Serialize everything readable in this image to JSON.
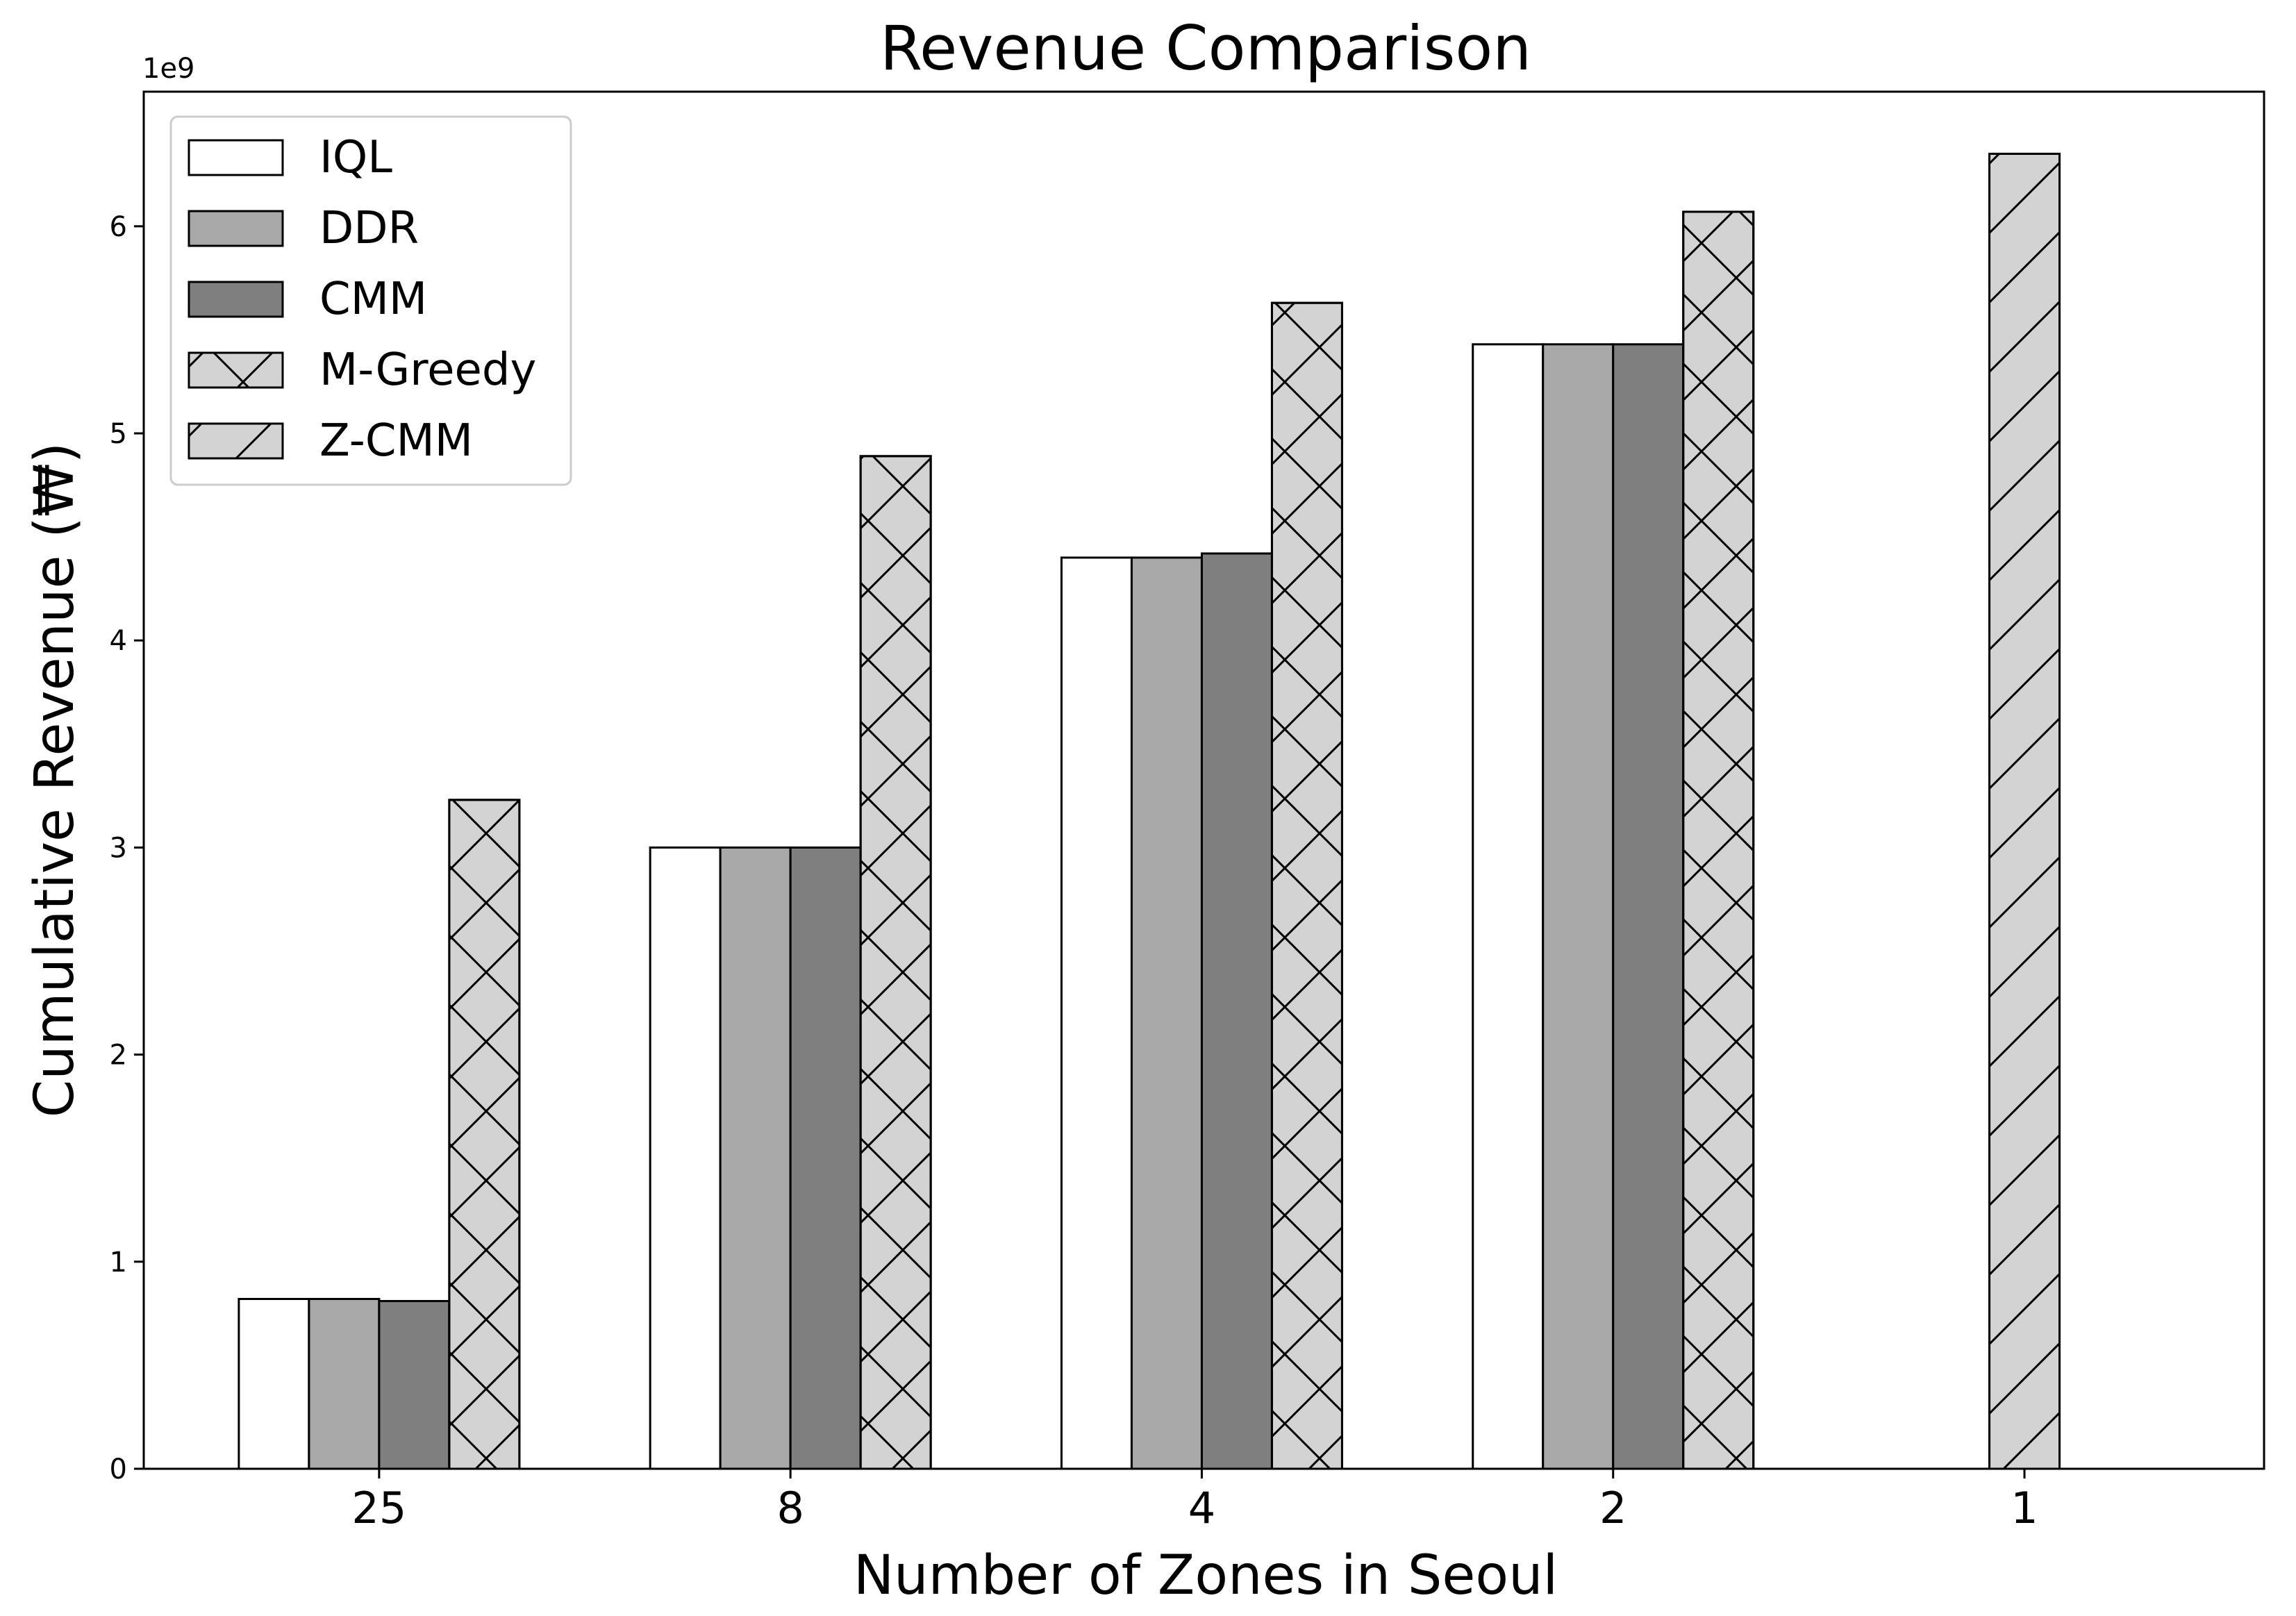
{
  "chart_data": {
    "type": "bar",
    "title": "Revenue Comparison",
    "xlabel": "Number of Zones in Seoul",
    "ylabel": "Cumulative Revenue (₩)",
    "y_offset_label": "1e9",
    "categories": [
      "25",
      "8",
      "4",
      "2",
      "1"
    ],
    "ylim": [
      0,
      6.65
    ],
    "yticks": [
      0,
      1,
      2,
      3,
      4,
      5,
      6
    ],
    "ytick_labels": [
      "0",
      "1",
      "2",
      "3",
      "4",
      "5",
      "6"
    ],
    "legend_position": "top-left",
    "grid": false,
    "series": [
      {
        "name": "IQL",
        "color": "#ffffff",
        "hatch": "none",
        "values": [
          0.82,
          3.0,
          4.4,
          5.43,
          null
        ]
      },
      {
        "name": "DDR",
        "color": "#a8a8a8",
        "hatch": "none",
        "values": [
          0.82,
          3.0,
          4.4,
          5.43,
          null
        ]
      },
      {
        "name": "CMM",
        "color": "#7f7f7f",
        "hatch": "none",
        "values": [
          0.81,
          3.0,
          4.42,
          5.43,
          null
        ]
      },
      {
        "name": "M-Greedy",
        "color": "#d3d3d3",
        "hatch": "cross",
        "values": [
          3.23,
          4.89,
          5.63,
          6.07,
          null
        ]
      },
      {
        "name": "Z-CMM",
        "color": "#d3d3d3",
        "hatch": "diagonal",
        "values": [
          null,
          null,
          null,
          null,
          6.35
        ]
      }
    ]
  }
}
